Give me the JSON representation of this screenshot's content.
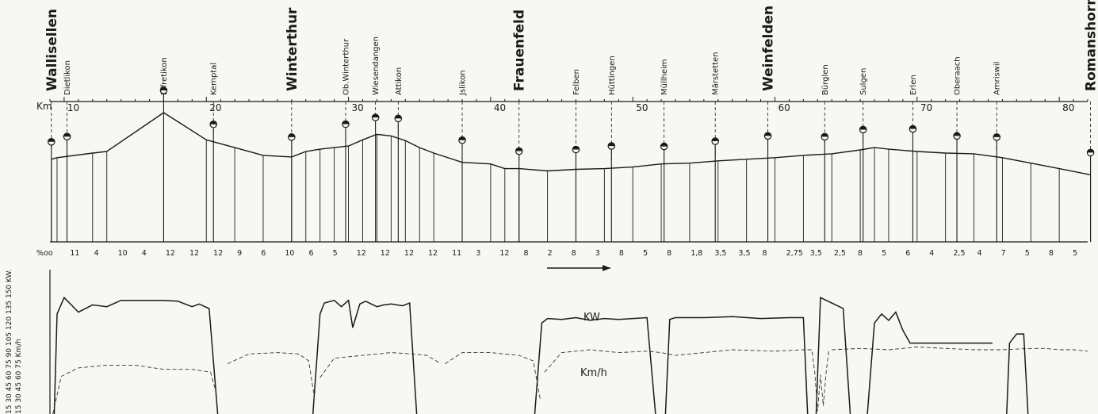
{
  "chart_data": {
    "type": "line",
    "title": "",
    "km_axis": {
      "label": "Km",
      "ticks": [
        "10",
        "20",
        "30",
        "40",
        "50",
        "60",
        "70",
        "80"
      ],
      "range": [
        9,
        82
      ]
    },
    "stations": [
      {
        "name": "Wallisellen",
        "km": 9.1,
        "major": true
      },
      {
        "name": "Dietlikon",
        "km": 10.2,
        "major": false
      },
      {
        "name": "Effretikon",
        "km": 17.0,
        "major": false
      },
      {
        "name": "Kemptal",
        "km": 20.5,
        "major": false
      },
      {
        "name": "Winterthur",
        "km": 26.0,
        "major": true
      },
      {
        "name": "Ob.Winterthur",
        "km": 29.8,
        "major": false
      },
      {
        "name": "Wiesendangen",
        "km": 31.9,
        "major": false
      },
      {
        "name": "Attikon",
        "km": 33.5,
        "major": false
      },
      {
        "name": "Jslikon",
        "km": 38.0,
        "major": false
      },
      {
        "name": "Frauenfeld",
        "km": 42.0,
        "major": true
      },
      {
        "name": "Felben",
        "km": 46.0,
        "major": false
      },
      {
        "name": "Hüttingen",
        "km": 48.5,
        "major": false
      },
      {
        "name": "Müllheim",
        "km": 52.2,
        "major": false
      },
      {
        "name": "Märstetten",
        "km": 55.8,
        "major": false
      },
      {
        "name": "Weinfelden",
        "km": 59.5,
        "major": true
      },
      {
        "name": "Bürglen",
        "km": 63.5,
        "major": false
      },
      {
        "name": "Sulgen",
        "km": 66.2,
        "major": false
      },
      {
        "name": "Erlen",
        "km": 69.7,
        "major": false
      },
      {
        "name": "Oberaach",
        "km": 72.8,
        "major": false
      },
      {
        "name": "Amriswil",
        "km": 75.6,
        "major": false
      },
      {
        "name": "Romanshorn",
        "km": 82.2,
        "major": true
      }
    ],
    "profile": {
      "km": [
        9.1,
        9.5,
        12,
        13,
        17,
        20,
        22,
        24,
        26,
        27,
        28,
        29,
        30,
        31,
        32,
        33,
        34,
        35,
        36,
        38,
        40,
        41,
        42,
        44,
        46,
        48,
        50,
        52,
        54,
        56,
        58,
        60,
        62,
        64,
        66,
        67,
        68,
        70,
        72,
        74,
        76,
        78,
        80,
        82.2
      ],
      "elev": [
        40,
        42,
        48,
        50,
        100,
        65,
        55,
        45,
        43,
        50,
        53,
        55,
        57,
        65,
        72,
        70,
        64,
        55,
        48,
        36,
        34,
        28,
        28,
        25,
        27,
        28,
        30,
        34,
        35,
        38,
        40,
        42,
        45,
        47,
        52,
        55,
        53,
        50,
        48,
        47,
        42,
        35,
        28,
        20
      ]
    },
    "gradients_label": "%oo",
    "gradients": [
      "11",
      "4",
      "10",
      "4",
      "12",
      "12",
      "12",
      "9",
      "6",
      "10",
      "6",
      "5",
      "12",
      "12",
      "12",
      "12",
      "11",
      "3",
      "12",
      "8",
      "2",
      "8",
      "3",
      "8",
      "5",
      "8",
      "1,8",
      "3,5",
      "3,5",
      "8",
      "2,75",
      "3,5",
      "2,5",
      "8",
      "5",
      "6",
      "4",
      "2,5",
      "4",
      "7",
      "5",
      "8",
      "5"
    ],
    "y_axis_left": {
      "kw_label": "15 30 45 60 75 90 105 120 135 150 KW.",
      "kmh_label": "15 30 45 60 75 Km/h"
    },
    "series": [
      {
        "name": "KW",
        "style": "solid"
      },
      {
        "name": "Km/h",
        "style": "dashed"
      }
    ],
    "kw_segments": [
      {
        "x": [
          9.3,
          9.5,
          10,
          11,
          12,
          13,
          14,
          16,
          17,
          18,
          19,
          19.5,
          19.9,
          20.2,
          20.8
        ],
        "y": [
          0,
          110,
          128,
          112,
          120,
          118,
          125,
          125,
          125,
          124,
          118,
          121,
          118,
          116,
          0
        ]
      },
      {
        "x": [
          27.5,
          28,
          28.3,
          29,
          29.5,
          30,
          30.3,
          30.8,
          31.2,
          32,
          32.5,
          33,
          33.8,
          34.3,
          34.8
        ],
        "y": [
          0,
          110,
          122,
          125,
          118,
          125,
          95,
          121,
          124,
          118,
          120,
          121,
          119,
          122,
          0
        ]
      },
      {
        "x": [
          43.1,
          43.6,
          44,
          45,
          46,
          47,
          48,
          49,
          50,
          51,
          51.6
        ],
        "y": [
          0,
          100,
          105,
          104,
          106,
          103,
          105,
          104,
          105,
          106,
          0
        ]
      },
      {
        "x": [
          52.3,
          52.6,
          53,
          55,
          57,
          59,
          61,
          62,
          62.3
        ],
        "y": [
          0,
          104,
          106,
          106,
          107,
          105,
          106,
          106,
          0
        ]
      },
      {
        "x": [
          62.9,
          63.2,
          64,
          64.8,
          65.3
        ],
        "y": [
          0,
          128,
          122,
          116,
          0
        ]
      },
      {
        "x": [
          66.5,
          67,
          67.5,
          68,
          68.5,
          69,
          69.5,
          71,
          73,
          75.3
        ],
        "y": [
          0,
          100,
          110,
          103,
          112,
          92,
          78,
          78,
          78,
          78
        ]
      },
      {
        "x": [
          76.3,
          76.5,
          77,
          77.5,
          77.8
        ],
        "y": [
          0,
          78,
          88,
          88,
          0
        ]
      }
    ],
    "kmh_segments": [
      {
        "x": [
          9.2,
          9.8,
          11,
          13,
          15,
          17,
          19,
          20.3,
          20.7
        ],
        "y": [
          0,
          27,
          33,
          35,
          35,
          32,
          32,
          30,
          15
        ]
      },
      {
        "x": [
          21.5,
          23,
          25,
          26.5,
          27.2,
          27.6
        ],
        "y": [
          36,
          43,
          44,
          43,
          38,
          12
        ]
      },
      {
        "x": [
          28,
          29,
          31,
          33,
          34.5,
          35.5,
          36.5
        ],
        "y": [
          26,
          40,
          42,
          44,
          43,
          42,
          36
        ]
      },
      {
        "x": [
          36.8,
          38,
          40,
          42,
          43,
          43.5
        ],
        "y": [
          36,
          44,
          44,
          42,
          38,
          10
        ]
      },
      {
        "x": [
          43.8,
          45,
          47,
          49,
          51,
          52,
          53,
          55,
          57,
          60,
          62,
          62.6,
          62.8,
          63,
          63.2,
          63.4,
          63.6,
          63.8
        ],
        "y": [
          30,
          44,
          46,
          44,
          45,
          44,
          42,
          44,
          46,
          45,
          46,
          46,
          30,
          2,
          28,
          6,
          30,
          46
        ]
      },
      {
        "x": [
          64,
          66,
          68,
          70,
          72,
          74,
          76,
          78,
          79,
          80,
          81,
          82
        ],
        "y": [
          46,
          47,
          46,
          48,
          47,
          46,
          46,
          47,
          47,
          46,
          46,
          45
        ]
      }
    ]
  }
}
